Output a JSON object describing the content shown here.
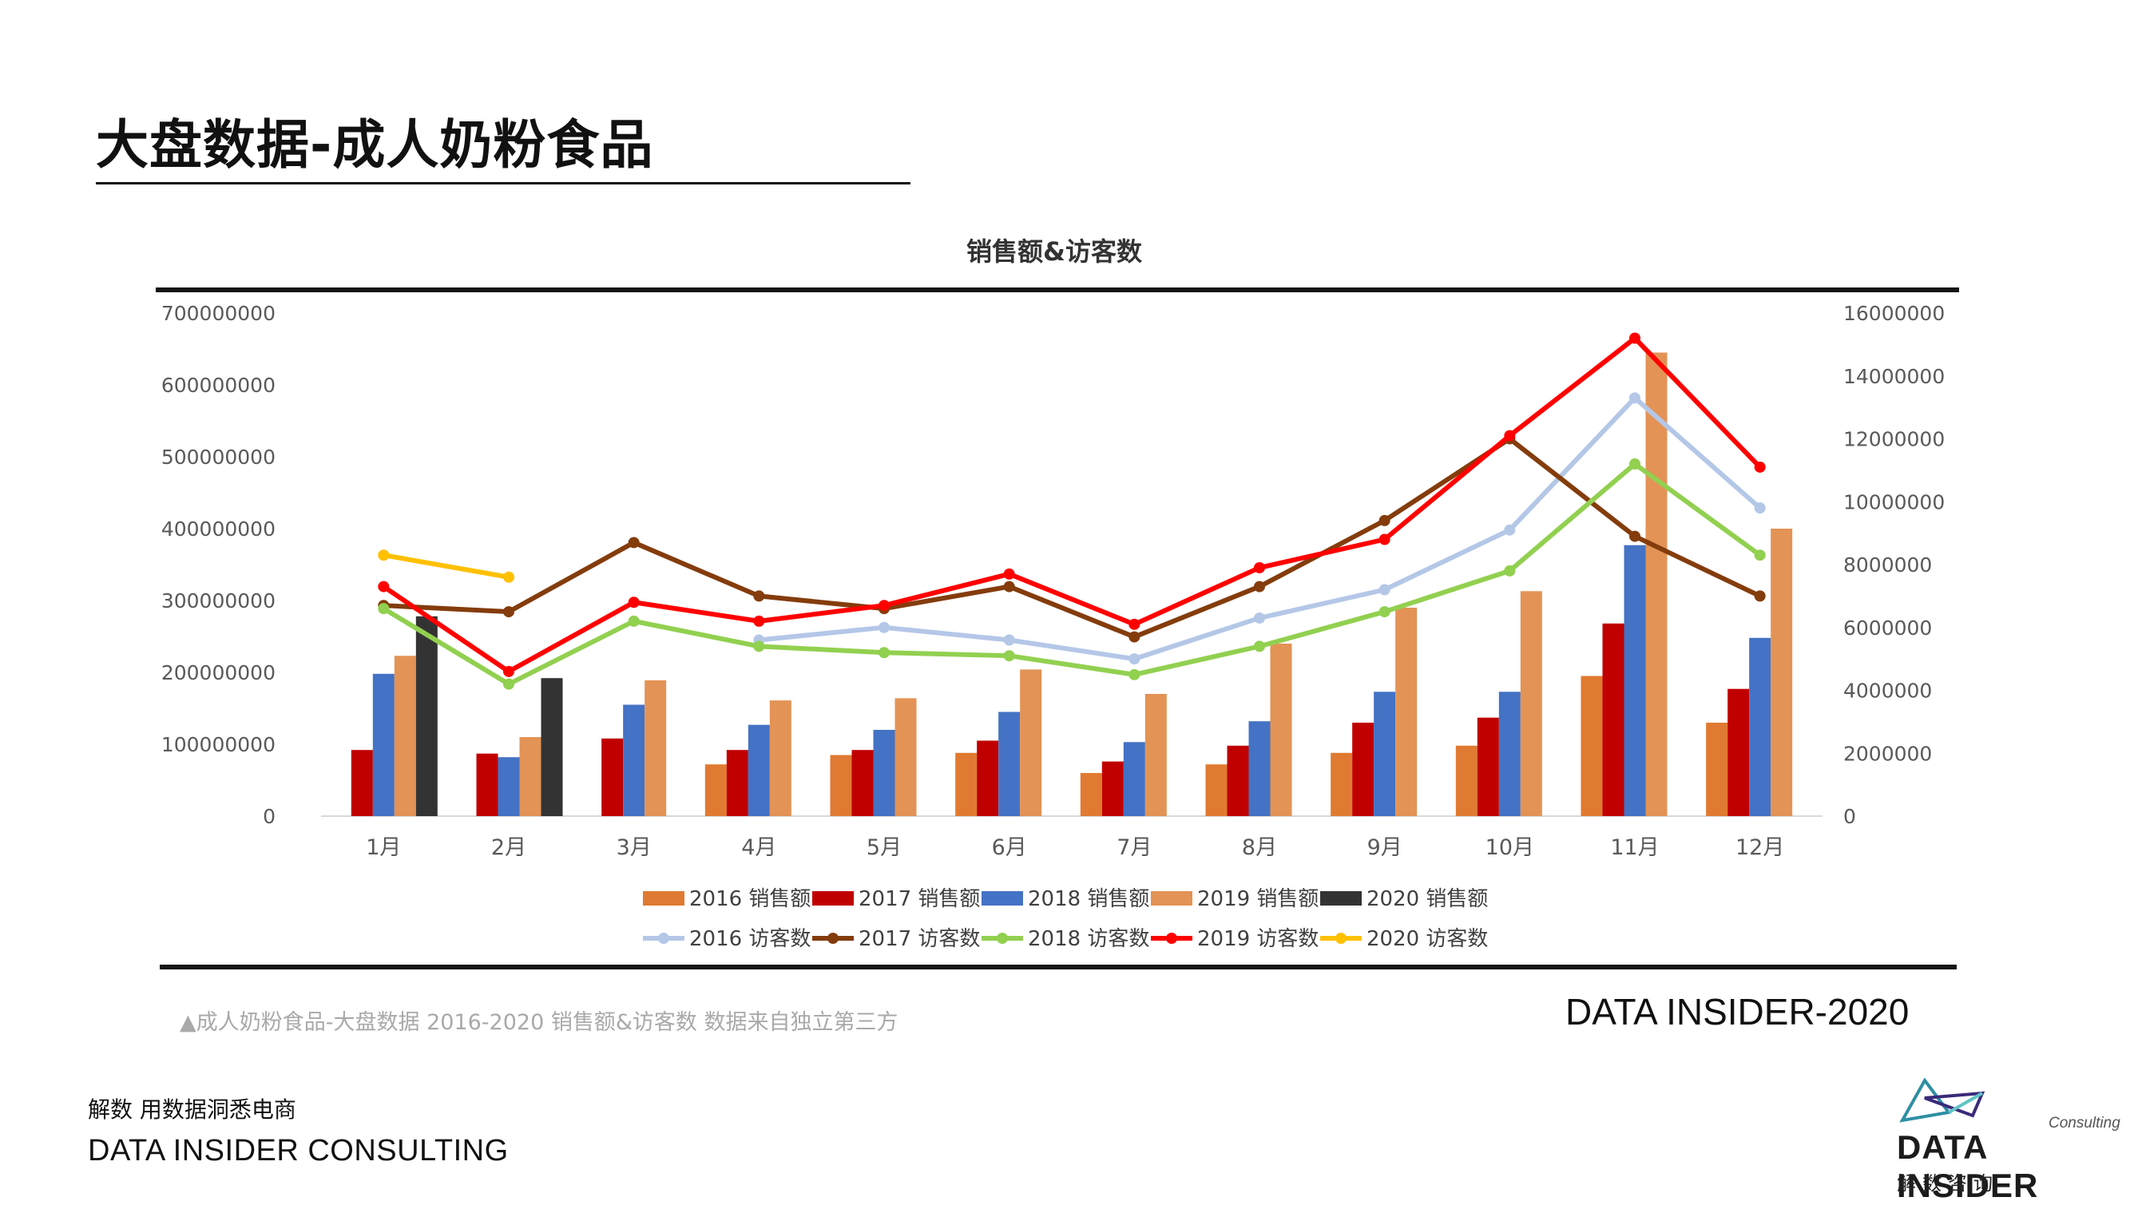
{
  "page": {
    "title": "大盘数据-成人奶粉食品",
    "caption": "▲成人奶粉食品-大盘数据 2016-2020 销售额&访客数 数据来自独立第三方",
    "brand_year": "DATA INSIDER-2020",
    "slogan": "解数 用数据洞悉电商",
    "consulting_name": "DATA INSIDER CONSULTING",
    "logo_text": "DATA INSIDER",
    "logo_sub": "Consulting",
    "logo_cn": "解数咨询",
    "logo_colors": [
      "#2e8fa3",
      "#3b2a7a",
      "#5fc4c4"
    ]
  },
  "chart_data": {
    "type": "bar+line",
    "title": "销售额&访客数",
    "categories": [
      "1月",
      "2月",
      "3月",
      "4月",
      "5月",
      "6月",
      "7月",
      "8月",
      "9月",
      "10月",
      "11月",
      "12月"
    ],
    "y_left": {
      "min": 0,
      "max": 700000000,
      "step": 100000000,
      "ticks": [
        "0",
        "100000000",
        "200000000",
        "300000000",
        "400000000",
        "500000000",
        "600000000",
        "700000000"
      ]
    },
    "y_right": {
      "min": 0,
      "max": 16000000,
      "step": 2000000,
      "ticks": [
        "0",
        "2000000",
        "4000000",
        "6000000",
        "8000000",
        "10000000",
        "12000000",
        "14000000",
        "16000000"
      ]
    },
    "bar_series": [
      {
        "name": "2016 销售额",
        "color": "#e07a32",
        "values": [
          null,
          null,
          null,
          72000000,
          85000000,
          88000000,
          60000000,
          72000000,
          88000000,
          98000000,
          195000000,
          130000000
        ]
      },
      {
        "name": "2017 销售额",
        "color": "#c00000",
        "values": [
          92000000,
          87000000,
          108000000,
          92000000,
          92000000,
          105000000,
          76000000,
          98000000,
          130000000,
          137000000,
          268000000,
          177000000
        ]
      },
      {
        "name": "2018 销售额",
        "color": "#4472c4",
        "values": [
          198000000,
          82000000,
          155000000,
          127000000,
          120000000,
          145000000,
          103000000,
          132000000,
          173000000,
          173000000,
          377000000,
          248000000
        ]
      },
      {
        "name": "2019 销售额",
        "color": "#e39355",
        "values": [
          223000000,
          110000000,
          189000000,
          161000000,
          164000000,
          204000000,
          170000000,
          240000000,
          290000000,
          313000000,
          645000000,
          400000000
        ]
      },
      {
        "name": "2020 销售额",
        "color": "#333333",
        "values": [
          278000000,
          192000000,
          null,
          null,
          null,
          null,
          null,
          null,
          null,
          null,
          null,
          null
        ]
      }
    ],
    "line_series": [
      {
        "name": "2016 访客数",
        "color": "#b4c7e7",
        "values": [
          null,
          null,
          null,
          5600000,
          6000000,
          5600000,
          5000000,
          6300000,
          7200000,
          9100000,
          13300000,
          9800000
        ]
      },
      {
        "name": "2017 访客数",
        "color": "#843c0c",
        "values": [
          6700000,
          6500000,
          8700000,
          7000000,
          6600000,
          7300000,
          5700000,
          7300000,
          9400000,
          12000000,
          8900000,
          7000000
        ]
      },
      {
        "name": "2018 访客数",
        "color": "#92d050",
        "values": [
          6600000,
          4200000,
          6200000,
          5400000,
          5200000,
          5100000,
          4500000,
          5400000,
          6500000,
          7800000,
          11200000,
          8300000
        ]
      },
      {
        "name": "2019 访客数",
        "color": "#ff0000",
        "values": [
          7300000,
          4600000,
          6800000,
          6200000,
          6700000,
          7700000,
          6100000,
          7900000,
          8800000,
          12100000,
          15200000,
          11100000
        ]
      },
      {
        "name": "2020 访客数",
        "color": "#ffc000",
        "values": [
          8300000,
          7600000,
          null,
          null,
          null,
          null,
          null,
          null,
          null,
          null,
          null,
          null
        ]
      }
    ],
    "legend_position": "bottom",
    "gridlines": false
  }
}
